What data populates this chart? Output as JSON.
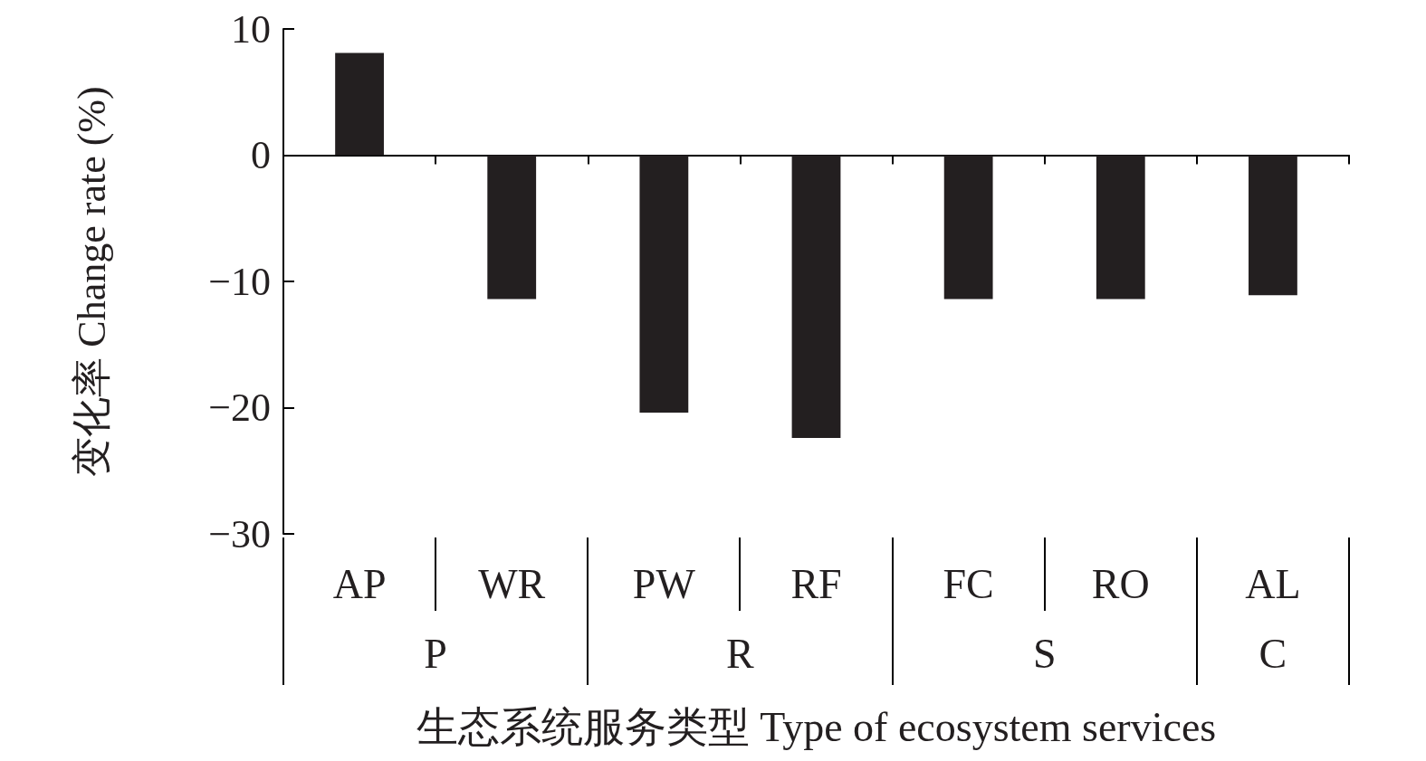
{
  "chart_data": {
    "type": "bar",
    "xlabel": "生态系统服务类型 Type of ecosystem services",
    "ylabel": "变化率 Change rate (%)",
    "categories": [
      "AP",
      "WR",
      "PW",
      "RF",
      "FC",
      "RO",
      "AL"
    ],
    "values": [
      8.1,
      -11.4,
      -20.4,
      -22.4,
      -11.4,
      -11.4,
      -11.1
    ],
    "color": "#231f20",
    "ylim": [
      -30,
      10
    ],
    "yticks": [
      -30,
      -20,
      -10,
      0,
      10
    ],
    "annotations": [
      "P",
      "R",
      "S",
      "C"
    ]
  }
}
